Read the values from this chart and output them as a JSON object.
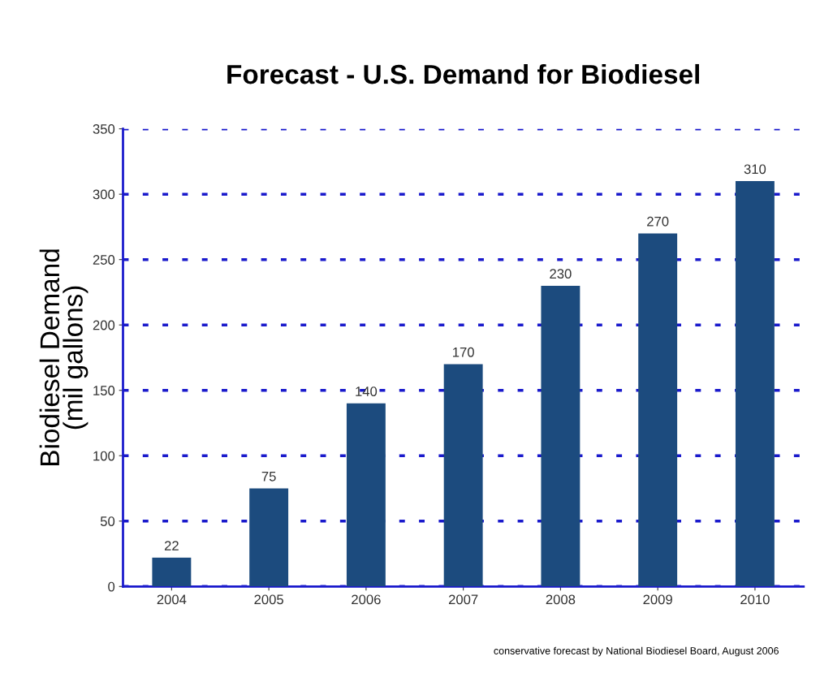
{
  "chart_data": {
    "type": "bar",
    "title": "Forecast - U.S. Demand for Biodiesel",
    "ylabel": "Biodiesel Demand\n(mil gallons)",
    "categories": [
      "2004",
      "2005",
      "2006",
      "2007",
      "2008",
      "2009",
      "2010"
    ],
    "values": [
      22,
      75,
      140,
      170,
      230,
      270,
      310
    ],
    "color": "#1c4b7e",
    "data_labels": true,
    "ylim": [
      0,
      350
    ],
    "yticks": [
      0,
      50,
      100,
      150,
      200,
      250,
      300,
      350
    ],
    "grid": "y",
    "annotations": [
      "conservative forecast by National Biodiesel Board, August 2006"
    ]
  }
}
